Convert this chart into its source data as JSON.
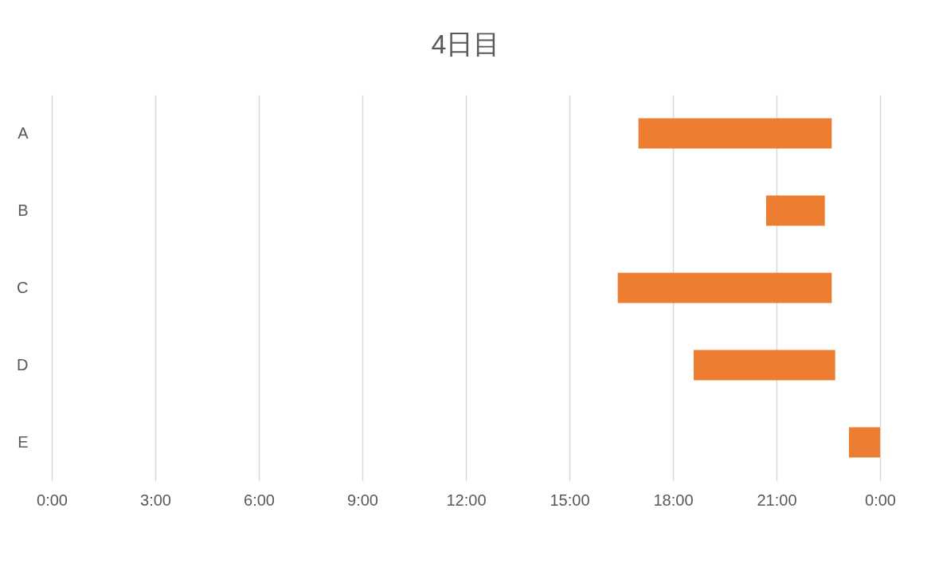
{
  "chart_data": {
    "type": "bar",
    "title": "4日目",
    "orientation": "horizontal",
    "categories": [
      "A",
      "B",
      "C",
      "D",
      "E"
    ],
    "base": [
      17.0,
      20.7,
      16.4,
      18.6,
      23.1
    ],
    "values": [
      5.6,
      1.7,
      6.2,
      4.1,
      0.9
    ],
    "color": "#ed7d31",
    "xlim": [
      0,
      24
    ],
    "xticks": [
      {
        "value": 0,
        "label": "0:00"
      },
      {
        "value": 3,
        "label": "3:00"
      },
      {
        "value": 6,
        "label": "6:00"
      },
      {
        "value": 9,
        "label": "9:00"
      },
      {
        "value": 12,
        "label": "12:00"
      },
      {
        "value": 15,
        "label": "15:00"
      },
      {
        "value": 18,
        "label": "18:00"
      },
      {
        "value": 21,
        "label": "21:00"
      },
      {
        "value": 24,
        "label": "0:00"
      }
    ],
    "grid": "x"
  }
}
